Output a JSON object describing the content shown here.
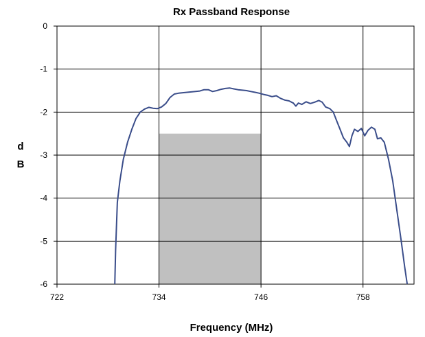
{
  "chart_data": {
    "type": "line",
    "title": "Rx Passband Response",
    "xlabel": "Frequency (MHz)",
    "ylabel": "dB",
    "ylabel_lines": [
      "d",
      "B"
    ],
    "xlim": [
      722,
      764
    ],
    "ylim": [
      -6,
      0
    ],
    "xticks": [
      722,
      734,
      746,
      758
    ],
    "yticks": [
      0,
      -1,
      -2,
      -3,
      -4,
      -5,
      -6
    ],
    "grid": true,
    "shaded_band": {
      "x": [
        734,
        746
      ],
      "y_top": -2.5,
      "y_bottom": -6,
      "color": "#c0c0c0"
    },
    "series": [
      {
        "color": "#3a4d8a",
        "points": [
          [
            728.8,
            -6.0
          ],
          [
            728.9,
            -5.2
          ],
          [
            729.1,
            -4.1
          ],
          [
            729.4,
            -3.6
          ],
          [
            729.8,
            -3.1
          ],
          [
            730.3,
            -2.7
          ],
          [
            730.8,
            -2.4
          ],
          [
            731.3,
            -2.15
          ],
          [
            731.8,
            -2.0
          ],
          [
            732.3,
            -1.93
          ],
          [
            732.8,
            -1.89
          ],
          [
            733.3,
            -1.91
          ],
          [
            733.8,
            -1.92
          ],
          [
            734.3,
            -1.88
          ],
          [
            734.8,
            -1.8
          ],
          [
            735.3,
            -1.66
          ],
          [
            735.8,
            -1.58
          ],
          [
            736.3,
            -1.56
          ],
          [
            736.8,
            -1.55
          ],
          [
            737.3,
            -1.54
          ],
          [
            737.8,
            -1.53
          ],
          [
            738.3,
            -1.52
          ],
          [
            738.8,
            -1.51
          ],
          [
            739.3,
            -1.48
          ],
          [
            739.8,
            -1.48
          ],
          [
            740.3,
            -1.52
          ],
          [
            740.8,
            -1.5
          ],
          [
            741.3,
            -1.47
          ],
          [
            741.8,
            -1.45
          ],
          [
            742.3,
            -1.44
          ],
          [
            742.8,
            -1.46
          ],
          [
            743.3,
            -1.48
          ],
          [
            743.8,
            -1.49
          ],
          [
            744.3,
            -1.5
          ],
          [
            744.8,
            -1.52
          ],
          [
            745.3,
            -1.54
          ],
          [
            745.8,
            -1.56
          ],
          [
            746.3,
            -1.59
          ],
          [
            746.8,
            -1.61
          ],
          [
            747.3,
            -1.64
          ],
          [
            747.8,
            -1.62
          ],
          [
            748.3,
            -1.68
          ],
          [
            748.8,
            -1.72
          ],
          [
            749.3,
            -1.74
          ],
          [
            749.8,
            -1.79
          ],
          [
            750.1,
            -1.86
          ],
          [
            750.4,
            -1.79
          ],
          [
            750.8,
            -1.82
          ],
          [
            751.3,
            -1.76
          ],
          [
            751.8,
            -1.8
          ],
          [
            752.3,
            -1.77
          ],
          [
            752.8,
            -1.73
          ],
          [
            753.2,
            -1.77
          ],
          [
            753.6,
            -1.88
          ],
          [
            754.1,
            -1.92
          ],
          [
            754.5,
            -2.0
          ],
          [
            754.9,
            -2.2
          ],
          [
            755.3,
            -2.4
          ],
          [
            755.7,
            -2.6
          ],
          [
            756.1,
            -2.7
          ],
          [
            756.4,
            -2.8
          ],
          [
            756.7,
            -2.55
          ],
          [
            757.0,
            -2.4
          ],
          [
            757.4,
            -2.45
          ],
          [
            757.8,
            -2.38
          ],
          [
            758.2,
            -2.55
          ],
          [
            758.6,
            -2.42
          ],
          [
            759.0,
            -2.35
          ],
          [
            759.4,
            -2.4
          ],
          [
            759.7,
            -2.62
          ],
          [
            760.1,
            -2.6
          ],
          [
            760.5,
            -2.7
          ],
          [
            761.0,
            -3.1
          ],
          [
            761.5,
            -3.6
          ],
          [
            762.0,
            -4.3
          ],
          [
            762.5,
            -5.0
          ],
          [
            762.9,
            -5.6
          ],
          [
            763.2,
            -6.0
          ]
        ]
      }
    ]
  }
}
